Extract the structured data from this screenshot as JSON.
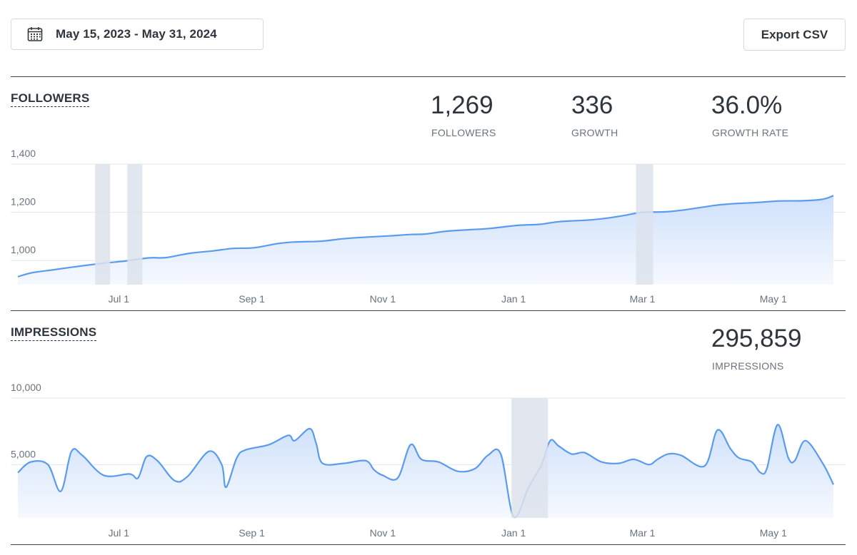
{
  "date_picker": {
    "label": "May 15, 2023 - May 31, 2024",
    "icon": "calendar-icon"
  },
  "export": {
    "label": "Export CSV"
  },
  "colors": {
    "line": "#5b9bed",
    "area_top": "#cfe1fb",
    "area_bottom": "#f6f9fe",
    "highlight": "#dde3ec",
    "grid": "#e3e7eb"
  },
  "followers": {
    "title": "FOLLOWERS",
    "stats": [
      {
        "value": "1,269",
        "label": "FOLLOWERS"
      },
      {
        "value": "336",
        "label": "GROWTH"
      },
      {
        "value": "36.0%",
        "label": "GROWTH RATE"
      }
    ]
  },
  "impressions": {
    "title": "IMPRESSIONS",
    "stats": [
      {
        "value": "295,859",
        "label": "IMPRESSIONS"
      }
    ]
  },
  "chart_data": [
    {
      "type": "area",
      "name": "followers",
      "x_start": "2023-05-15",
      "x_end": "2024-05-31",
      "xticks": [
        "Jul 1",
        "Sep 1",
        "Nov 1",
        "Jan 1",
        "Mar 1",
        "May 1"
      ],
      "xtick_dates": [
        "2023-07-01",
        "2023-09-01",
        "2023-11-01",
        "2024-01-01",
        "2024-03-01",
        "2024-05-01"
      ],
      "yticks": [
        1000,
        1200,
        1400
      ],
      "ytick_labels": [
        "1,000",
        "1,200",
        "1,400"
      ],
      "ylim": [
        900,
        1400
      ],
      "x": [
        "2023-05-15",
        "2023-05-22",
        "2023-06-01",
        "2023-06-13",
        "2023-06-25",
        "2023-07-04",
        "2023-07-15",
        "2023-07-23",
        "2023-08-03",
        "2023-08-14",
        "2023-08-23",
        "2023-09-02",
        "2023-09-13",
        "2023-09-21",
        "2023-10-03",
        "2023-10-13",
        "2023-10-22",
        "2023-11-04",
        "2023-11-14",
        "2023-11-21",
        "2023-12-01",
        "2023-12-12",
        "2023-12-21",
        "2024-01-03",
        "2024-01-13",
        "2024-01-22",
        "2024-02-03",
        "2024-02-11",
        "2024-02-21",
        "2024-03-01",
        "2024-03-12",
        "2024-03-23",
        "2024-04-04",
        "2024-04-13",
        "2024-04-24",
        "2024-05-04",
        "2024-05-15",
        "2024-05-24",
        "2024-05-29"
      ],
      "y": [
        933,
        950,
        962,
        977,
        990,
        998,
        1011,
        1012,
        1030,
        1040,
        1050,
        1053,
        1070,
        1077,
        1080,
        1090,
        1096,
        1102,
        1108,
        1110,
        1122,
        1128,
        1133,
        1146,
        1150,
        1161,
        1167,
        1173,
        1186,
        1200,
        1202,
        1213,
        1229,
        1236,
        1241,
        1247,
        1248,
        1254,
        1269
      ],
      "highlights": [
        [
          "2023-06-20",
          "2023-06-27"
        ],
        [
          "2023-07-05",
          "2023-07-12"
        ],
        [
          "2024-02-27",
          "2024-03-06"
        ]
      ]
    },
    {
      "type": "area",
      "name": "impressions",
      "x_start": "2023-05-15",
      "x_end": "2024-05-31",
      "xticks": [
        "Jul 1",
        "Sep 1",
        "Nov 1",
        "Jan 1",
        "Mar 1",
        "May 1"
      ],
      "xtick_dates": [
        "2023-07-01",
        "2023-09-01",
        "2023-11-01",
        "2024-01-01",
        "2024-03-01",
        "2024-05-01"
      ],
      "yticks": [
        5000,
        10000
      ],
      "ytick_labels": [
        "5,000",
        "10,000"
      ],
      "ylim": [
        1000,
        10000
      ],
      "x": [
        "2023-05-15",
        "2023-05-21",
        "2023-05-29",
        "2023-06-04",
        "2023-06-09",
        "2023-06-14",
        "2023-06-24",
        "2023-07-06",
        "2023-07-10",
        "2023-07-14",
        "2023-07-19",
        "2023-07-27",
        "2023-08-02",
        "2023-08-12",
        "2023-08-18",
        "2023-08-20",
        "2023-08-25",
        "2023-08-29",
        "2023-09-09",
        "2023-09-18",
        "2023-09-21",
        "2023-09-28",
        "2023-10-01",
        "2023-10-04",
        "2023-10-14",
        "2023-10-24",
        "2023-10-28",
        "2023-11-01",
        "2023-11-08",
        "2023-11-14",
        "2023-11-19",
        "2023-11-27",
        "2023-12-06",
        "2023-12-14",
        "2023-12-20",
        "2023-12-26",
        "2024-01-01",
        "2024-01-08",
        "2024-01-14",
        "2024-01-18",
        "2024-01-22",
        "2024-01-28",
        "2024-02-03",
        "2024-02-11",
        "2024-02-19",
        "2024-02-26",
        "2024-03-04",
        "2024-03-08",
        "2024-03-13",
        "2024-03-19",
        "2024-03-30",
        "2024-04-05",
        "2024-04-11",
        "2024-04-15",
        "2024-04-21",
        "2024-04-25",
        "2024-04-28",
        "2024-05-03",
        "2024-05-08",
        "2024-05-11",
        "2024-05-16",
        "2024-05-24",
        "2024-05-29"
      ],
      "y": [
        4400,
        5200,
        5000,
        3000,
        6000,
        5700,
        4200,
        4300,
        4000,
        5600,
        5300,
        3800,
        4100,
        6000,
        5000,
        3300,
        5500,
        6100,
        6500,
        7200,
        6800,
        7700,
        6600,
        5100,
        5100,
        5300,
        4600,
        4200,
        4000,
        6500,
        5400,
        5200,
        4500,
        4700,
        5700,
        5800,
        1100,
        3300,
        5000,
        6800,
        6400,
        5800,
        5900,
        5200,
        5100,
        5400,
        5000,
        5400,
        5800,
        5700,
        4900,
        7600,
        6200,
        5500,
        5200,
        4400,
        4700,
        8000,
        5500,
        5300,
        6800,
        5100,
        3500
      ],
      "highlights": [
        [
          "2023-12-31",
          "2024-01-17"
        ]
      ]
    }
  ]
}
